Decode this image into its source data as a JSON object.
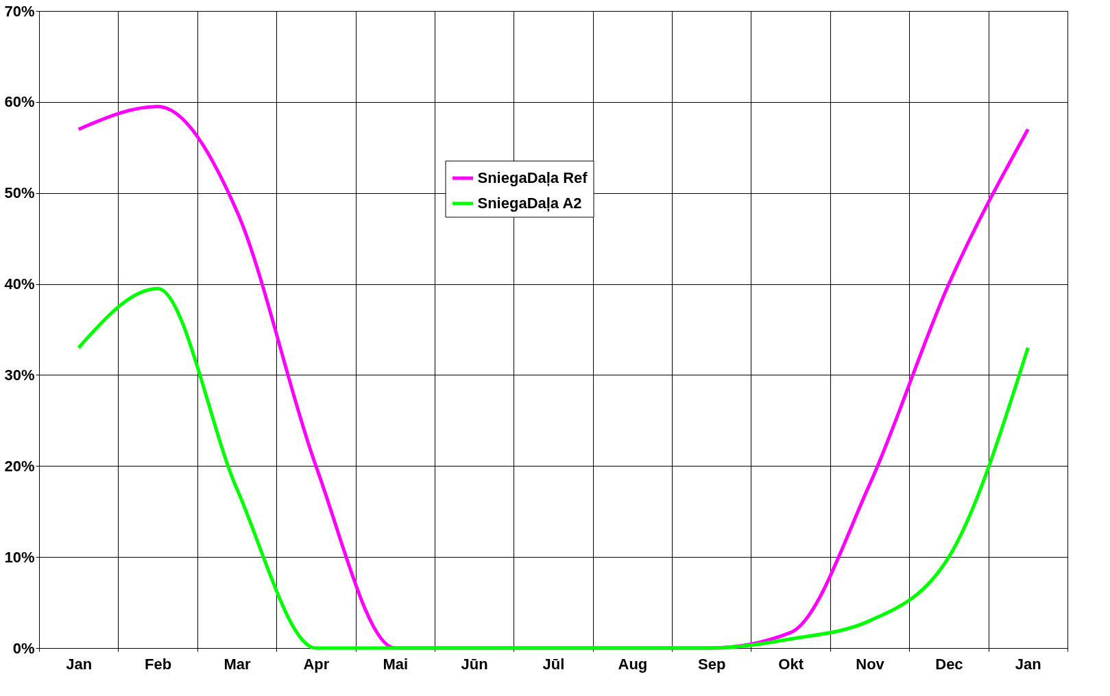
{
  "chart_data": {
    "type": "line",
    "categories": [
      "Jan",
      "Feb",
      "Mar",
      "Apr",
      "Mai",
      "Jūn",
      "Jūl",
      "Aug",
      "Sep",
      "Okt",
      "Nov",
      "Dec",
      "Jan"
    ],
    "series": [
      {
        "name": "SniegaDaļa Ref",
        "color": "#ff00ff",
        "values": [
          57,
          59.5,
          48,
          20,
          0,
          0,
          0,
          0,
          0,
          1.7,
          18,
          40,
          57
        ]
      },
      {
        "name": "SniegaDaļa A2",
        "color": "#00ff00",
        "values": [
          33,
          39.5,
          17.5,
          0,
          0,
          0,
          0,
          0,
          0,
          1,
          3,
          10,
          33
        ]
      }
    ],
    "ylim": [
      0,
      70
    ],
    "yticks": [
      {
        "value": 0,
        "label": "0%"
      },
      {
        "value": 10,
        "label": "10%"
      },
      {
        "value": 20,
        "label": "20%"
      },
      {
        "value": 30,
        "label": "30%"
      },
      {
        "value": 40,
        "label": "40%"
      },
      {
        "value": 50,
        "label": "50%"
      },
      {
        "value": 60,
        "label": "60%"
      },
      {
        "value": 70,
        "label": "70%"
      }
    ],
    "grid": true,
    "legend": "top",
    "marker": "none",
    "line_style": "solid"
  }
}
